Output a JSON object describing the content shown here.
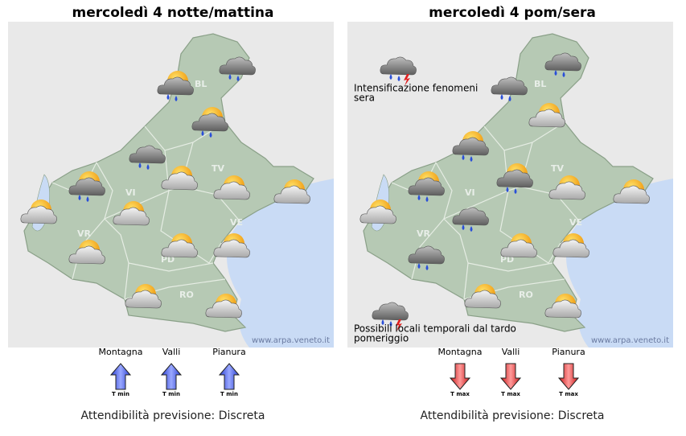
{
  "panels": [
    {
      "title": "mercoledì  4 notte/mattina",
      "provinces": [
        "BL",
        "TV",
        "VI",
        "VR",
        "PD",
        "VE",
        "RO"
      ],
      "watermark": "www.arpa.veneto.it",
      "notes": [],
      "zones": [
        {
          "name": "Montagna",
          "trend": "T min"
        },
        {
          "name": "Valli",
          "trend": "T min"
        },
        {
          "name": "Pianura",
          "trend": "T min"
        }
      ],
      "reliability": "Attendibilità previsione: Discreta"
    },
    {
      "title": "mercoledì  4 pom/sera",
      "provinces": [
        "BL",
        "TV",
        "VI",
        "VR",
        "PD",
        "VE",
        "RO"
      ],
      "watermark": "www.arpa.veneto.it",
      "notes": [
        [
          "Intensificazione fenomeni",
          "sera"
        ],
        [
          "Possibili locali temporali dal tardo",
          "pomeriggio"
        ]
      ],
      "zones": [
        {
          "name": "Montagna",
          "trend": "T max"
        },
        {
          "name": "Valli",
          "trend": "T max"
        },
        {
          "name": "Pianura",
          "trend": "T max"
        }
      ],
      "reliability": "Attendibilità previsione: Discreta"
    }
  ]
}
